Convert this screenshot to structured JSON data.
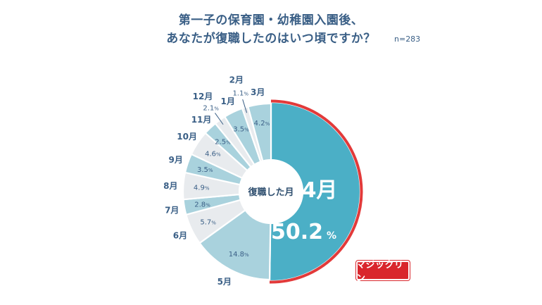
{
  "title_lines": [
    "第一子の保育園・幼稚園入園後、",
    "あなたが復職したのはいつ頃ですか？"
  ],
  "sample_note": "n=283",
  "center_label": "復職した月",
  "brand_logo_text": "マジックリン",
  "colors": {
    "highlight_fill": "#4bafc6",
    "highlight_ring": "#e23a3a",
    "fill_blue": "#a9d2dd",
    "fill_gray": "#e8ebee",
    "label": "#3a5f86"
  },
  "chart_data": {
    "type": "pie",
    "style": "donut",
    "title": "",
    "unit": "%",
    "highlight": "4月",
    "slices": [
      {
        "label": "4月",
        "value": 50.2
      },
      {
        "label": "5月",
        "value": 14.8
      },
      {
        "label": "6月",
        "value": 5.7
      },
      {
        "label": "7月",
        "value": 2.8
      },
      {
        "label": "8月",
        "value": 4.9
      },
      {
        "label": "9月",
        "value": 3.5
      },
      {
        "label": "10月",
        "value": 4.6
      },
      {
        "label": "11月",
        "value": 2.5
      },
      {
        "label": "12月",
        "value": 2.1
      },
      {
        "label": "1月",
        "value": 3.5
      },
      {
        "label": "2月",
        "value": 1.1
      },
      {
        "label": "3月",
        "value": 4.2
      }
    ]
  }
}
